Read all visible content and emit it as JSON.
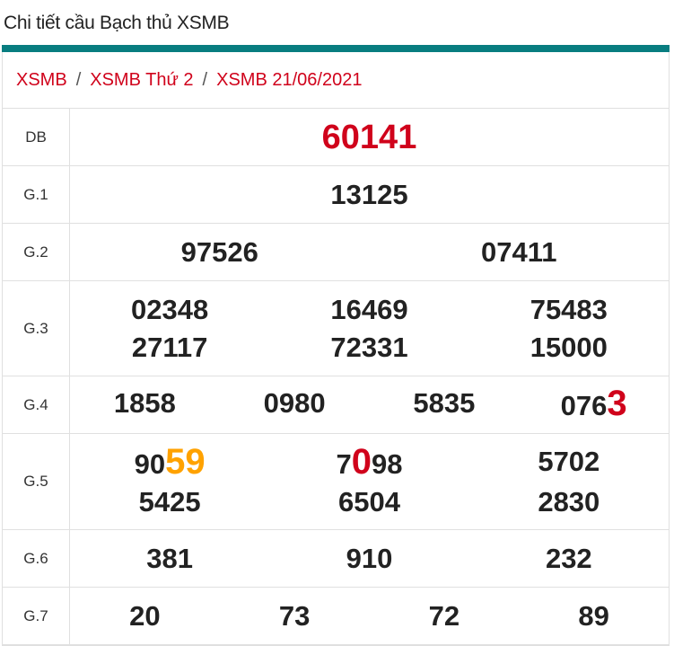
{
  "title": "Chi tiết cầu Bạch thủ XSMB",
  "colors": {
    "accent": "#087d80",
    "red": "#d0021b",
    "orange": "#ffa200"
  },
  "breadcrumb": [
    "XSMB",
    "XSMB Thứ 2",
    "XSMB 21/06/2021"
  ],
  "breadcrumb_separator": "/",
  "prizes": [
    {
      "label": "DB",
      "cols": 1,
      "numbers": [
        [
          {
            "t": "60141",
            "c": "red",
            "big": true
          }
        ]
      ]
    },
    {
      "label": "G.1",
      "cols": 1,
      "numbers": [
        [
          {
            "t": "13125"
          }
        ]
      ]
    },
    {
      "label": "G.2",
      "cols": 2,
      "numbers": [
        [
          {
            "t": "97526"
          }
        ],
        [
          {
            "t": "07411"
          }
        ]
      ]
    },
    {
      "label": "G.3",
      "cols": 3,
      "numbers": [
        [
          {
            "t": "02348"
          }
        ],
        [
          {
            "t": "16469"
          }
        ],
        [
          {
            "t": "75483"
          }
        ],
        [
          {
            "t": "27117"
          }
        ],
        [
          {
            "t": "72331"
          }
        ],
        [
          {
            "t": "15000"
          }
        ]
      ]
    },
    {
      "label": "G.4",
      "cols": 4,
      "numbers": [
        [
          {
            "t": "1858"
          }
        ],
        [
          {
            "t": "0980"
          }
        ],
        [
          {
            "t": "5835"
          }
        ],
        [
          {
            "t": "076"
          },
          {
            "t": "3",
            "c": "red",
            "big": true
          }
        ]
      ]
    },
    {
      "label": "G.5",
      "cols": 3,
      "numbers": [
        [
          {
            "t": "90"
          },
          {
            "t": "59",
            "c": "orange",
            "big": true
          }
        ],
        [
          {
            "t": "7"
          },
          {
            "t": "0",
            "c": "red",
            "big": true
          },
          {
            "t": "98"
          }
        ],
        [
          {
            "t": "5702"
          }
        ],
        [
          {
            "t": "5425"
          }
        ],
        [
          {
            "t": "6504"
          }
        ],
        [
          {
            "t": "2830"
          }
        ]
      ]
    },
    {
      "label": "G.6",
      "cols": 3,
      "numbers": [
        [
          {
            "t": "381"
          }
        ],
        [
          {
            "t": "910"
          }
        ],
        [
          {
            "t": "232"
          }
        ]
      ]
    },
    {
      "label": "G.7",
      "cols": 4,
      "numbers": [
        [
          {
            "t": "20"
          }
        ],
        [
          {
            "t": "73"
          }
        ],
        [
          {
            "t": "72"
          }
        ],
        [
          {
            "t": "89"
          }
        ]
      ]
    }
  ]
}
